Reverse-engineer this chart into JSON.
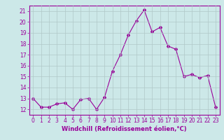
{
  "x": [
    0,
    1,
    2,
    3,
    4,
    5,
    6,
    7,
    8,
    9,
    10,
    11,
    12,
    13,
    14,
    15,
    16,
    17,
    18,
    19,
    20,
    21,
    22,
    23
  ],
  "y": [
    13.0,
    12.2,
    12.2,
    12.5,
    12.6,
    12.0,
    12.9,
    13.0,
    12.0,
    13.1,
    15.5,
    17.0,
    18.8,
    20.1,
    21.1,
    19.1,
    19.5,
    17.8,
    17.5,
    15.0,
    15.2,
    14.9,
    15.1,
    12.2
  ],
  "line_color": "#990099",
  "marker": "D",
  "marker_size": 2,
  "bg_color": "#cce8e8",
  "grid_color": "#b0c8c8",
  "xlabel": "Windchill (Refroidissement éolien,°C)",
  "xlim": [
    -0.5,
    23.5
  ],
  "ylim": [
    11.5,
    21.5
  ],
  "yticks": [
    12,
    13,
    14,
    15,
    16,
    17,
    18,
    19,
    20,
    21
  ],
  "xticks": [
    0,
    1,
    2,
    3,
    4,
    5,
    6,
    7,
    8,
    9,
    10,
    11,
    12,
    13,
    14,
    15,
    16,
    17,
    18,
    19,
    20,
    21,
    22,
    23
  ],
  "tick_color": "#990099",
  "label_color": "#990099",
  "axis_color": "#990099",
  "tick_labelsize": 5.5,
  "xlabel_fontsize": 6.0
}
